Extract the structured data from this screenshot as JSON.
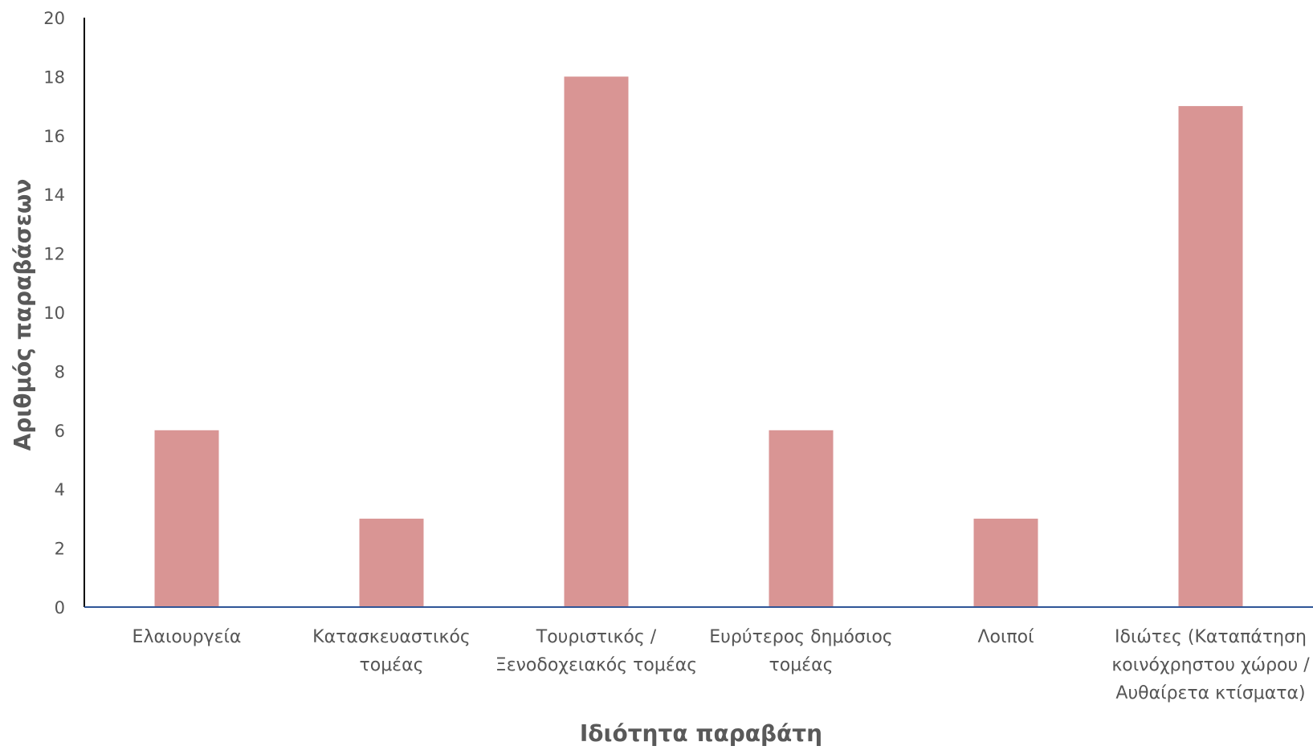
{
  "chart_data": {
    "type": "bar",
    "categories": [
      [
        "Ελαιουργεία"
      ],
      [
        "Κατασκευαστικός",
        "τομέας"
      ],
      [
        "Τουριστικός /",
        "Ξενοδοχειακός τομέας"
      ],
      [
        "Ευρύτερος δημόσιος",
        "τομέας"
      ],
      [
        "Λοιποί"
      ],
      [
        "Ιδιώτες (Καταπάτηση",
        "κοινόχρηστου χώρου /",
        "Αυθαίρετα κτίσματα)"
      ]
    ],
    "values": [
      6,
      3,
      18,
      6,
      3,
      17
    ],
    "xlabel": "Ιδιότητα παραβάτη",
    "ylabel": "Αριθμός παραβάσεων",
    "ylim": [
      0,
      20
    ],
    "yticks": [
      0,
      2,
      4,
      6,
      8,
      10,
      12,
      14,
      16,
      18,
      20
    ],
    "grid": false,
    "legend": "none",
    "colors": {
      "bar": "#d99594",
      "x_axis": "#2f5597",
      "y_axis": "#000000"
    }
  }
}
